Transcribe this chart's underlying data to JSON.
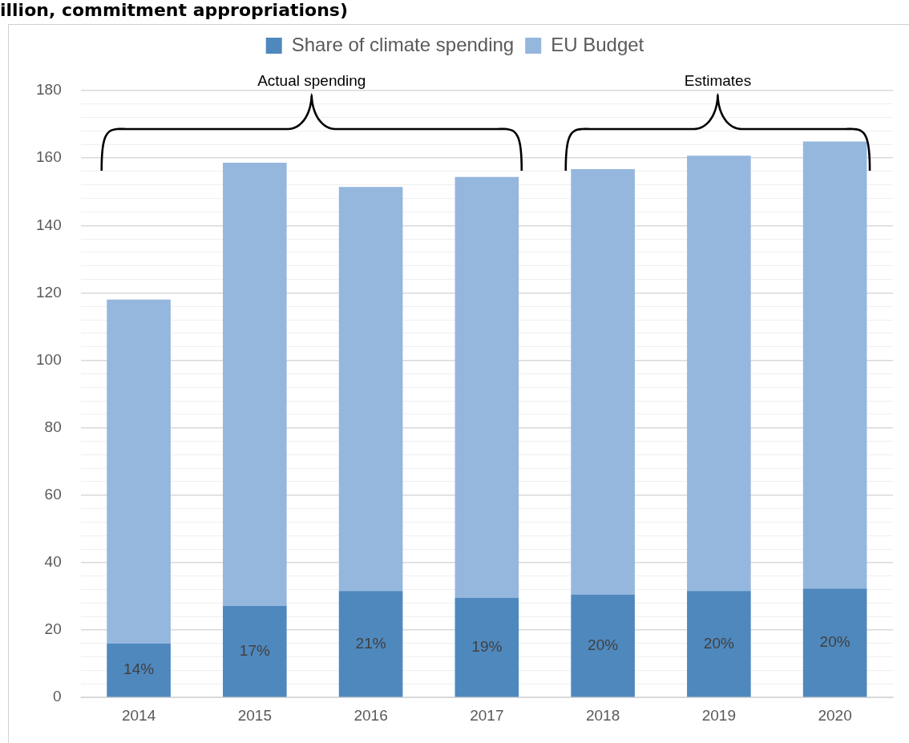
{
  "chart_data": {
    "type": "bar",
    "title": "illion, commitment appropriations)",
    "stacked": true,
    "legend": "top",
    "categories": [
      "2014",
      "2015",
      "2016",
      "2017",
      "2018",
      "2019",
      "2020"
    ],
    "series": [
      {
        "name": "Share of climate spending",
        "color": "#4f88bd",
        "values": [
          16,
          27.2,
          31.6,
          29.5,
          30.5,
          31.6,
          32.3
        ]
      },
      {
        "name": "EU Budget",
        "color": "#95b7de",
        "values": [
          102,
          131.4,
          119.8,
          124.9,
          126.2,
          129.1,
          132.6
        ]
      }
    ],
    "ylim": [
      0,
      180
    ],
    "yticks": [
      0,
      {
        "value": 4,
        "label": null
      },
      {
        "value": 8,
        "label": null
      },
      {
        "value": 12,
        "label": null
      },
      {
        "value": 16,
        "label": null
      },
      20,
      {
        "value": 24,
        "label": null
      },
      {
        "value": 28,
        "label": null
      },
      {
        "value": 32,
        "label": null
      },
      {
        "value": 36,
        "label": null
      },
      40,
      {
        "value": 44,
        "label": null
      },
      {
        "value": 48,
        "label": null
      },
      {
        "value": 52,
        "label": null
      },
      {
        "value": 56,
        "label": null
      },
      60,
      {
        "value": 64,
        "label": null
      },
      {
        "value": 68,
        "label": null
      },
      {
        "value": 72,
        "label": null
      },
      {
        "value": 76,
        "label": null
      },
      80,
      {
        "value": 84,
        "label": null
      },
      {
        "value": 88,
        "label": null
      },
      {
        "value": 92,
        "label": null
      },
      {
        "value": 96,
        "label": null
      },
      100,
      {
        "value": 104,
        "label": null
      },
      {
        "value": 108,
        "label": null
      },
      {
        "value": 112,
        "label": null
      },
      {
        "value": 116,
        "label": null
      },
      120,
      {
        "value": 124,
        "label": null
      },
      {
        "value": 128,
        "label": null
      },
      {
        "value": 132,
        "label": null
      },
      {
        "value": 136,
        "label": null
      },
      140,
      {
        "value": 144,
        "label": null
      },
      {
        "value": 148,
        "label": null
      },
      {
        "value": 152,
        "label": null
      },
      {
        "value": 156,
        "label": null
      },
      160,
      {
        "value": 164,
        "label": null
      },
      {
        "value": 168,
        "label": null
      },
      {
        "value": 172,
        "label": null
      },
      {
        "value": 176,
        "label": null
      },
      180
    ],
    "grid": "y",
    "annotations": [
      "Actual spending",
      "Estimates",
      "14%",
      "17%",
      "21%",
      "19%",
      "20%",
      "20%",
      "20%"
    ]
  }
}
